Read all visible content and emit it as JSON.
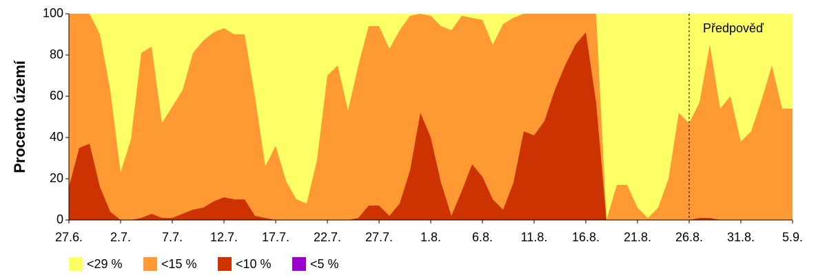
{
  "chart_data": {
    "type": "area",
    "y_label": "Procento území",
    "categories": [
      "27.6.",
      null,
      null,
      null,
      null,
      "2.7.",
      null,
      null,
      null,
      null,
      "7.7.",
      null,
      null,
      null,
      null,
      "12.7.",
      null,
      null,
      null,
      null,
      "17.7.",
      null,
      null,
      null,
      null,
      "22.7.",
      null,
      null,
      null,
      null,
      "27.7.",
      null,
      null,
      null,
      null,
      "1.8.",
      null,
      null,
      null,
      null,
      "6.8.",
      null,
      null,
      null,
      null,
      "11.8.",
      null,
      null,
      null,
      null,
      "16.8.",
      null,
      null,
      null,
      null,
      "21.8.",
      null,
      null,
      null,
      null,
      "26.8.",
      null,
      null,
      null,
      null,
      "31.8.",
      null,
      null,
      null,
      null,
      "5.9."
    ],
    "series": [
      {
        "name": "<29 %",
        "color": "#ffff66",
        "values": [
          100,
          100,
          100,
          100,
          100,
          100,
          100,
          100,
          100,
          100,
          100,
          100,
          100,
          100,
          100,
          100,
          100,
          100,
          100,
          100,
          100,
          100,
          100,
          100,
          100,
          100,
          100,
          100,
          100,
          100,
          100,
          100,
          100,
          100,
          100,
          100,
          100,
          100,
          100,
          100,
          100,
          100,
          100,
          100,
          100,
          100,
          100,
          100,
          100,
          100,
          100,
          100,
          100,
          100,
          100,
          100,
          100,
          100,
          100,
          100,
          100,
          100,
          100,
          100,
          100,
          100,
          100,
          100,
          100,
          100,
          100
        ]
      },
      {
        "name": "<15 %",
        "color": "#ff9933",
        "values": [
          100,
          100,
          100,
          90,
          63,
          23,
          39,
          81,
          84,
          47,
          55,
          63,
          81,
          87,
          91,
          93,
          90,
          90,
          60,
          26,
          36,
          19,
          10,
          8,
          29,
          70,
          75,
          53,
          75,
          94,
          94,
          83,
          92,
          99,
          100,
          99,
          94,
          92,
          99,
          98,
          97,
          85,
          95,
          98,
          100,
          100,
          100,
          100,
          100,
          100,
          100,
          100,
          0,
          17,
          17,
          6,
          1,
          6,
          20,
          52,
          47,
          57,
          85,
          54,
          60,
          38,
          43,
          58,
          75,
          54,
          54
        ]
      },
      {
        "name": "<10 %",
        "color": "#cc3300",
        "values": [
          16,
          35,
          37,
          16,
          4,
          0,
          0,
          1,
          3,
          1,
          1,
          3,
          5,
          6,
          9,
          11,
          10,
          10,
          2,
          1,
          0,
          0,
          0,
          0,
          0,
          0,
          0,
          0,
          1,
          7,
          7,
          2,
          8,
          24,
          52,
          40,
          18,
          2,
          14,
          27,
          21,
          10,
          5,
          18,
          43,
          41,
          48,
          63,
          75,
          85,
          91,
          57,
          0,
          0,
          0,
          0,
          0,
          0,
          0,
          0,
          0,
          1,
          1,
          0,
          0,
          0,
          0,
          0,
          0,
          0,
          0
        ]
      },
      {
        "name": "<5 %",
        "color": "#9900cc",
        "values": [
          0,
          0,
          0,
          0,
          0,
          0,
          0,
          0,
          0,
          0,
          0,
          0,
          0,
          0,
          0,
          0,
          0,
          0,
          0,
          0,
          0,
          0,
          0,
          0,
          0,
          0,
          0,
          0,
          0,
          0,
          0,
          0,
          0,
          0,
          0,
          0,
          0,
          0,
          0,
          0,
          0,
          0,
          0,
          0,
          0,
          0,
          0,
          0,
          0,
          0,
          0,
          0,
          0,
          0,
          0,
          0,
          0,
          0,
          0,
          0,
          0,
          0,
          0,
          0,
          0,
          0,
          0,
          0,
          0,
          0,
          0
        ]
      }
    ],
    "ylim": [
      0,
      100
    ],
    "yticks": [
      0,
      20,
      40,
      60,
      80,
      100
    ],
    "annotation": {
      "text": "Předpověď",
      "x": "26.8."
    },
    "legend": "bottom-left"
  }
}
